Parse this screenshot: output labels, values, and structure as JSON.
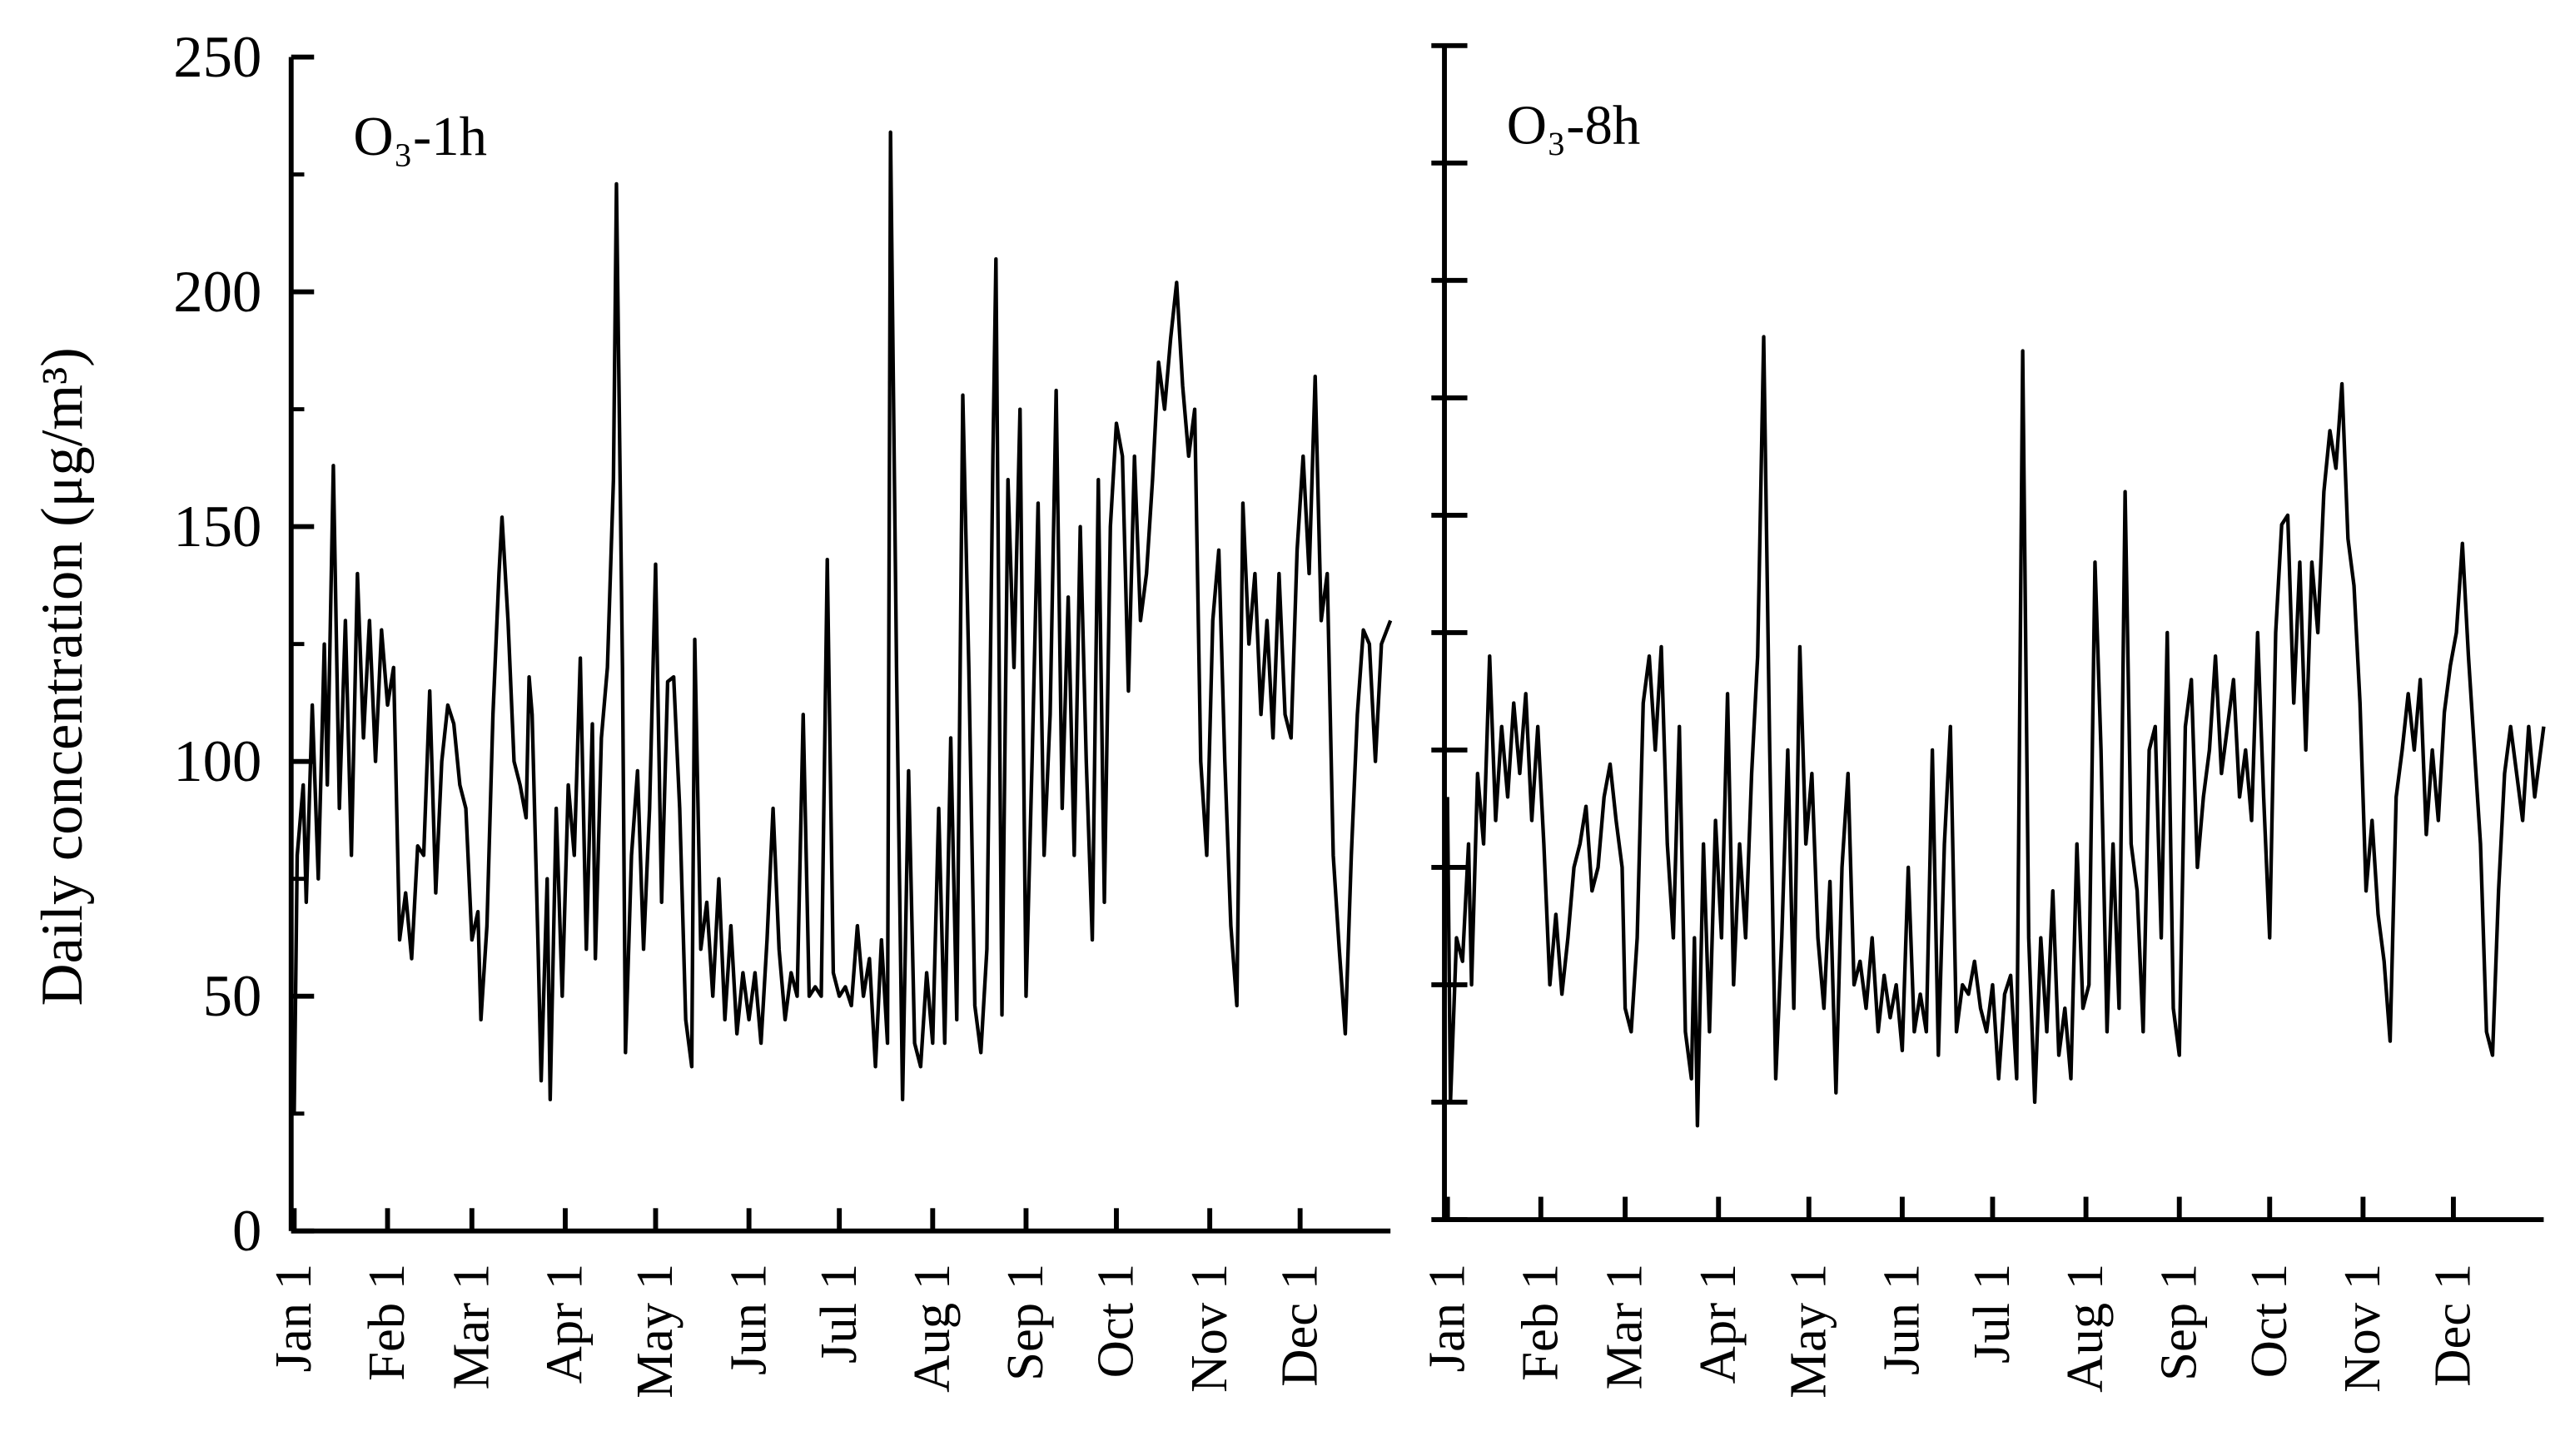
{
  "chart_data": [
    {
      "type": "line",
      "ylabel": "Daily concentration (μg/m³)",
      "annotation": "O₃-1h",
      "color": "#000000",
      "xlim": [
        0,
        365
      ],
      "ylim": [
        0,
        250
      ],
      "yticks": [
        0,
        50,
        100,
        150,
        200,
        250
      ],
      "minor_yticks": [
        25,
        75,
        125,
        175,
        225
      ],
      "tick_labels": true,
      "xticks": [
        {
          "value": 1,
          "label": "Jan 1"
        },
        {
          "value": 32,
          "label": "Feb 1"
        },
        {
          "value": 60,
          "label": "Mar 1"
        },
        {
          "value": 91,
          "label": "Apr 1"
        },
        {
          "value": 121,
          "label": "May 1"
        },
        {
          "value": 152,
          "label": "Jun 1"
        },
        {
          "value": 182,
          "label": "Jul 1"
        },
        {
          "value": 213,
          "label": "Aug 1"
        },
        {
          "value": 244,
          "label": "Sep 1"
        },
        {
          "value": 274,
          "label": "Oct 1"
        },
        {
          "value": 305,
          "label": "Nov 1"
        },
        {
          "value": 335,
          "label": "Dec 1"
        }
      ],
      "x": [
        1,
        2,
        4,
        5,
        7,
        9,
        11,
        12,
        14,
        16,
        18,
        20,
        22,
        24,
        26,
        28,
        30,
        32,
        34,
        36,
        38,
        40,
        42,
        44,
        46,
        48,
        50,
        52,
        54,
        56,
        58,
        60,
        62,
        63,
        65,
        67,
        69,
        70,
        72,
        74,
        76,
        78,
        79,
        80,
        82,
        83,
        85,
        86,
        88,
        90,
        92,
        94,
        96,
        98,
        100,
        101,
        103,
        105,
        107,
        108,
        110,
        111,
        113,
        115,
        117,
        119,
        121,
        123,
        125,
        127,
        129,
        131,
        133,
        134,
        136,
        138,
        140,
        142,
        144,
        146,
        148,
        150,
        152,
        154,
        156,
        158,
        160,
        162,
        164,
        166,
        168,
        170,
        172,
        174,
        176,
        178,
        180,
        182,
        184,
        186,
        188,
        190,
        192,
        194,
        196,
        198,
        199,
        201,
        203,
        205,
        207,
        209,
        211,
        213,
        215,
        217,
        219,
        221,
        223,
        225,
        227,
        229,
        231,
        233,
        234,
        236,
        238,
        240,
        242,
        244,
        246,
        248,
        250,
        252,
        254,
        256,
        258,
        260,
        262,
        264,
        266,
        268,
        270,
        272,
        274,
        276,
        278,
        280,
        282,
        284,
        286,
        288,
        290,
        292,
        294,
        296,
        298,
        300,
        302,
        304,
        306,
        308,
        310,
        312,
        314,
        316,
        318,
        320,
        322,
        324,
        326,
        328,
        330,
        332,
        334,
        336,
        338,
        340,
        342,
        344,
        346,
        348,
        350,
        352,
        354,
        356,
        358,
        360,
        362,
        365
      ],
      "values": [
        25,
        80,
        95,
        70,
        112,
        75,
        125,
        95,
        163,
        90,
        130,
        80,
        140,
        105,
        130,
        100,
        128,
        112,
        120,
        62,
        72,
        58,
        82,
        80,
        115,
        72,
        100,
        112,
        108,
        95,
        90,
        62,
        68,
        45,
        65,
        110,
        140,
        152,
        130,
        100,
        95,
        88,
        118,
        110,
        60,
        32,
        75,
        28,
        90,
        50,
        95,
        80,
        122,
        60,
        108,
        58,
        105,
        120,
        160,
        223,
        120,
        38,
        80,
        98,
        60,
        90,
        142,
        70,
        117,
        118,
        90,
        45,
        35,
        126,
        60,
        70,
        50,
        75,
        45,
        65,
        42,
        55,
        45,
        55,
        40,
        62,
        90,
        60,
        45,
        55,
        50,
        110,
        50,
        52,
        50,
        143,
        55,
        50,
        52,
        48,
        65,
        50,
        58,
        35,
        62,
        40,
        234,
        120,
        28,
        98,
        40,
        35,
        55,
        40,
        90,
        40,
        105,
        45,
        178,
        120,
        48,
        38,
        60,
        165,
        207,
        46,
        160,
        120,
        175,
        50,
        100,
        155,
        80,
        110,
        179,
        90,
        135,
        80,
        150,
        100,
        62,
        160,
        70,
        150,
        172,
        165,
        115,
        165,
        130,
        140,
        160,
        185,
        175,
        190,
        202,
        180,
        165,
        175,
        100,
        80,
        130,
        145,
        100,
        65,
        48,
        155,
        125,
        140,
        110,
        130,
        105,
        140,
        110,
        105,
        145,
        165,
        140,
        182,
        130,
        140,
        80,
        60,
        42,
        80,
        110,
        128,
        125,
        100,
        125,
        130
      ]
    },
    {
      "type": "line",
      "annotation": "O₃-8h",
      "color": "#000000",
      "xlim": [
        0,
        365
      ],
      "ylim": [
        0,
        250
      ],
      "yticks": [
        0,
        25,
        50,
        75,
        100,
        125,
        150,
        175,
        200,
        225,
        250
      ],
      "tick_labels": false,
      "xticks": [
        {
          "value": 1,
          "label": "Jan 1"
        },
        {
          "value": 32,
          "label": "Feb 1"
        },
        {
          "value": 60,
          "label": "Mar 1"
        },
        {
          "value": 91,
          "label": "Apr 1"
        },
        {
          "value": 121,
          "label": "May 1"
        },
        {
          "value": 152,
          "label": "Jun 1"
        },
        {
          "value": 182,
          "label": "Jul 1"
        },
        {
          "value": 213,
          "label": "Aug 1"
        },
        {
          "value": 244,
          "label": "Sep 1"
        },
        {
          "value": 274,
          "label": "Oct 1"
        },
        {
          "value": 305,
          "label": "Nov 1"
        },
        {
          "value": 335,
          "label": "Dec 1"
        }
      ],
      "x": [
        1,
        2,
        4,
        6,
        8,
        9,
        11,
        13,
        15,
        17,
        19,
        21,
        23,
        25,
        27,
        29,
        31,
        33,
        35,
        37,
        39,
        41,
        43,
        45,
        47,
        49,
        51,
        53,
        55,
        57,
        59,
        60,
        62,
        64,
        66,
        68,
        70,
        72,
        74,
        76,
        78,
        80,
        82,
        83,
        84,
        86,
        88,
        90,
        92,
        94,
        96,
        98,
        100,
        102,
        104,
        106,
        108,
        110,
        112,
        114,
        116,
        118,
        120,
        122,
        124,
        126,
        128,
        130,
        132,
        134,
        136,
        138,
        140,
        142,
        144,
        146,
        148,
        150,
        152,
        154,
        156,
        158,
        160,
        162,
        164,
        166,
        168,
        170,
        172,
        174,
        176,
        178,
        180,
        182,
        184,
        186,
        188,
        190,
        192,
        194,
        196,
        198,
        200,
        202,
        204,
        206,
        208,
        210,
        212,
        214,
        216,
        218,
        220,
        222,
        224,
        226,
        228,
        230,
        232,
        234,
        236,
        238,
        240,
        242,
        244,
        246,
        248,
        250,
        252,
        254,
        256,
        258,
        260,
        262,
        264,
        266,
        268,
        270,
        272,
        274,
        276,
        278,
        280,
        282,
        284,
        286,
        288,
        290,
        292,
        294,
        296,
        298,
        300,
        302,
        304,
        306,
        308,
        310,
        312,
        314,
        316,
        318,
        320,
        322,
        324,
        326,
        328,
        330,
        332,
        334,
        336,
        338,
        340,
        342,
        344,
        346,
        348,
        350,
        352,
        354,
        356,
        358,
        360,
        362,
        365
      ],
      "values": [
        90,
        25,
        60,
        55,
        80,
        50,
        95,
        80,
        120,
        85,
        105,
        90,
        110,
        95,
        112,
        85,
        105,
        80,
        50,
        65,
        48,
        60,
        75,
        80,
        88,
        70,
        75,
        90,
        97,
        85,
        75,
        45,
        40,
        60,
        110,
        120,
        100,
        122,
        80,
        60,
        105,
        40,
        30,
        60,
        20,
        80,
        40,
        85,
        60,
        112,
        50,
        80,
        60,
        95,
        120,
        188,
        100,
        30,
        60,
        100,
        45,
        122,
        80,
        95,
        60,
        45,
        72,
        27,
        75,
        95,
        50,
        55,
        45,
        60,
        40,
        52,
        43,
        50,
        36,
        75,
        40,
        48,
        40,
        100,
        35,
        80,
        105,
        40,
        50,
        48,
        55,
        45,
        40,
        50,
        30,
        48,
        52,
        30,
        185,
        60,
        25,
        60,
        40,
        70,
        35,
        45,
        30,
        80,
        45,
        50,
        140,
        100,
        40,
        80,
        45,
        155,
        80,
        70,
        40,
        100,
        105,
        60,
        125,
        45,
        35,
        105,
        115,
        75,
        90,
        100,
        120,
        95,
        105,
        115,
        90,
        100,
        85,
        125,
        90,
        60,
        125,
        148,
        150,
        110,
        140,
        100,
        140,
        125,
        155,
        168,
        160,
        178,
        145,
        135,
        110,
        70,
        85,
        65,
        55,
        38,
        90,
        100,
        112,
        100,
        115,
        82,
        100,
        85,
        108,
        118,
        125,
        144,
        120,
        100,
        80,
        40,
        35,
        70,
        95,
        105,
        95,
        85,
        105,
        90,
        105
      ]
    }
  ]
}
